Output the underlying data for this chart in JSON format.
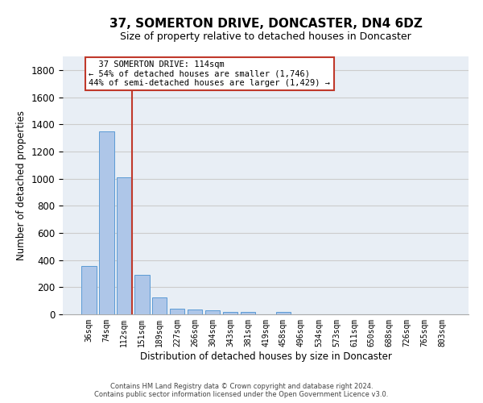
{
  "title": "37, SOMERTON DRIVE, DONCASTER, DN4 6DZ",
  "subtitle": "Size of property relative to detached houses in Doncaster",
  "xlabel": "Distribution of detached houses by size in Doncaster",
  "ylabel": "Number of detached properties",
  "footnote1": "Contains HM Land Registry data © Crown copyright and database right 2024.",
  "footnote2": "Contains public sector information licensed under the Open Government Licence v3.0.",
  "bar_labels": [
    "36sqm",
    "74sqm",
    "112sqm",
    "151sqm",
    "189sqm",
    "227sqm",
    "266sqm",
    "304sqm",
    "343sqm",
    "381sqm",
    "419sqm",
    "458sqm",
    "496sqm",
    "534sqm",
    "573sqm",
    "611sqm",
    "650sqm",
    "688sqm",
    "726sqm",
    "765sqm",
    "803sqm"
  ],
  "bar_values": [
    355,
    1350,
    1010,
    290,
    125,
    42,
    35,
    27,
    20,
    15,
    0,
    20,
    0,
    0,
    0,
    0,
    0,
    0,
    0,
    0,
    0
  ],
  "bar_color": "#aec6e8",
  "bar_edge_color": "#5b9bd5",
  "highlight_index": 2,
  "highlight_line_color": "#c0392b",
  "annotation_line1": "  37 SOMERTON DRIVE: 114sqm",
  "annotation_line2": "← 54% of detached houses are smaller (1,746)",
  "annotation_line3": "44% of semi-detached houses are larger (1,429) →",
  "annotation_box_color": "#ffffff",
  "annotation_box_edge_color": "#c0392b",
  "ylim": [
    0,
    1900
  ],
  "yticks": [
    0,
    200,
    400,
    600,
    800,
    1000,
    1200,
    1400,
    1600,
    1800
  ],
  "grid_color": "#cccccc",
  "bg_color": "#e8eef5",
  "title_fontsize": 11,
  "subtitle_fontsize": 9
}
